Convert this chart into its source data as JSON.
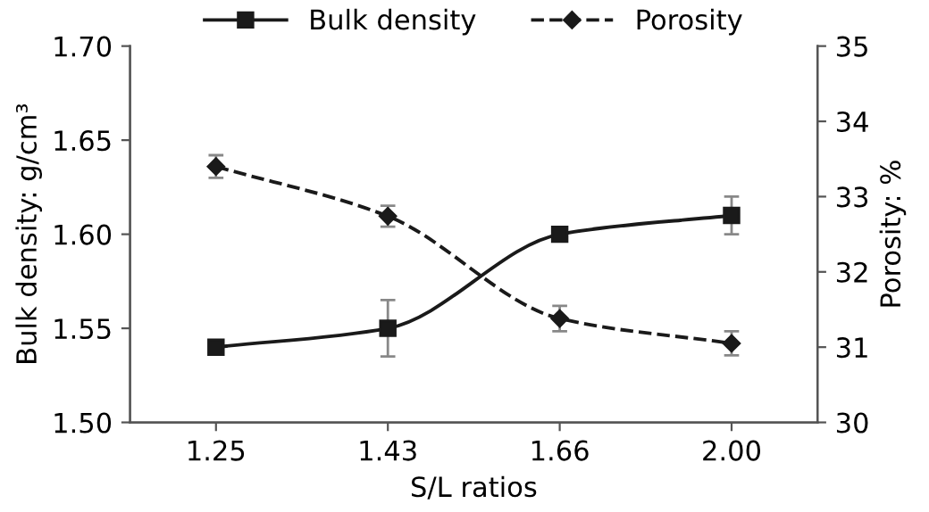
{
  "chart_data": {
    "type": "line",
    "xlabel": "S/L ratios",
    "ylabel": "Bulk density: g/cm³",
    "y2label": "Porosity: %",
    "categories": [
      "1.25",
      "1.43",
      "1.66",
      "2.00"
    ],
    "series": [
      {
        "name": "Bulk density",
        "color": "#1a1a1a",
        "values": [
          1.54,
          1.55,
          1.6,
          1.61
        ],
        "errors": [
          null,
          0.015,
          null,
          0.01
        ],
        "marker": "square",
        "line_style": "solid"
      },
      {
        "name": "Porosity",
        "color": "#1a1a1a",
        "values": [
          33.4,
          32.74,
          31.38,
          31.05
        ],
        "errors": [
          0.15,
          0.14,
          0.17,
          0.16
        ],
        "marker": "diamond",
        "line_style": "dashed",
        "axis": "y2"
      }
    ],
    "ylim": [
      1.5,
      1.7
    ],
    "yticks": [
      {
        "value": 1.5,
        "label": "1.50"
      },
      {
        "value": 1.55,
        "label": "1.55"
      },
      {
        "value": 1.6,
        "label": "1.60"
      },
      {
        "value": 1.65,
        "label": "1.65"
      },
      {
        "value": 1.7,
        "label": "1.70"
      }
    ],
    "y2lim": [
      30,
      35
    ],
    "y2ticks": [
      30,
      31,
      32,
      33,
      34,
      35
    ],
    "legend": "top",
    "grid": false
  }
}
